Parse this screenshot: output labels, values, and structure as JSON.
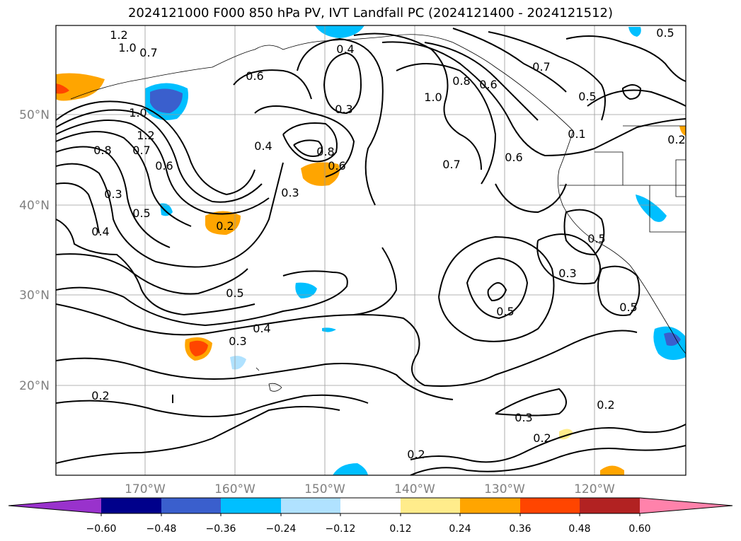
{
  "title": "2024121000 F000 850 hPa PV, IVT Landfall PC (2024121400 - 2024121512)",
  "lat_labels": [
    "50°N",
    "40°N",
    "30°N",
    "20°N"
  ],
  "lon_labels": [
    "170°W",
    "160°W",
    "150°W",
    "140°W",
    "130°W",
    "120°W"
  ],
  "colorbar": {
    "ticks": [
      "−0.60",
      "−0.48",
      "−0.36",
      "−0.24",
      "−0.12",
      "0.12",
      "0.24",
      "0.36",
      "0.48",
      "0.60"
    ],
    "colors": [
      "#9932CC",
      "#00008B",
      "#3A5FCD",
      "#00BFFF",
      "#B0E2FF",
      "#FFFFFF",
      "#FFEC8B",
      "#FFA500",
      "#FF4500",
      "#B22222",
      "#FF82AB"
    ]
  },
  "contour_labels": [
    "1.2",
    "1.0",
    "0.7",
    "0.6",
    "0.4",
    "1.0",
    "0.8",
    "0.6",
    "0.7",
    "0.5",
    "0.5",
    "0.3",
    "1.0",
    "1.2",
    "0.8",
    "0.7",
    "0.6",
    "0.4",
    "0.8",
    "0.6",
    "0.7",
    "0.6",
    "0.1",
    "0.2",
    "0.3",
    "0.5",
    "0.4",
    "0.3",
    "0.2",
    "0.5",
    "0.3",
    "0.5",
    "0.5",
    "0.5",
    "0.4",
    "0.3",
    "0.2",
    "0.3",
    "0.2",
    "0.2",
    "0.2"
  ]
}
